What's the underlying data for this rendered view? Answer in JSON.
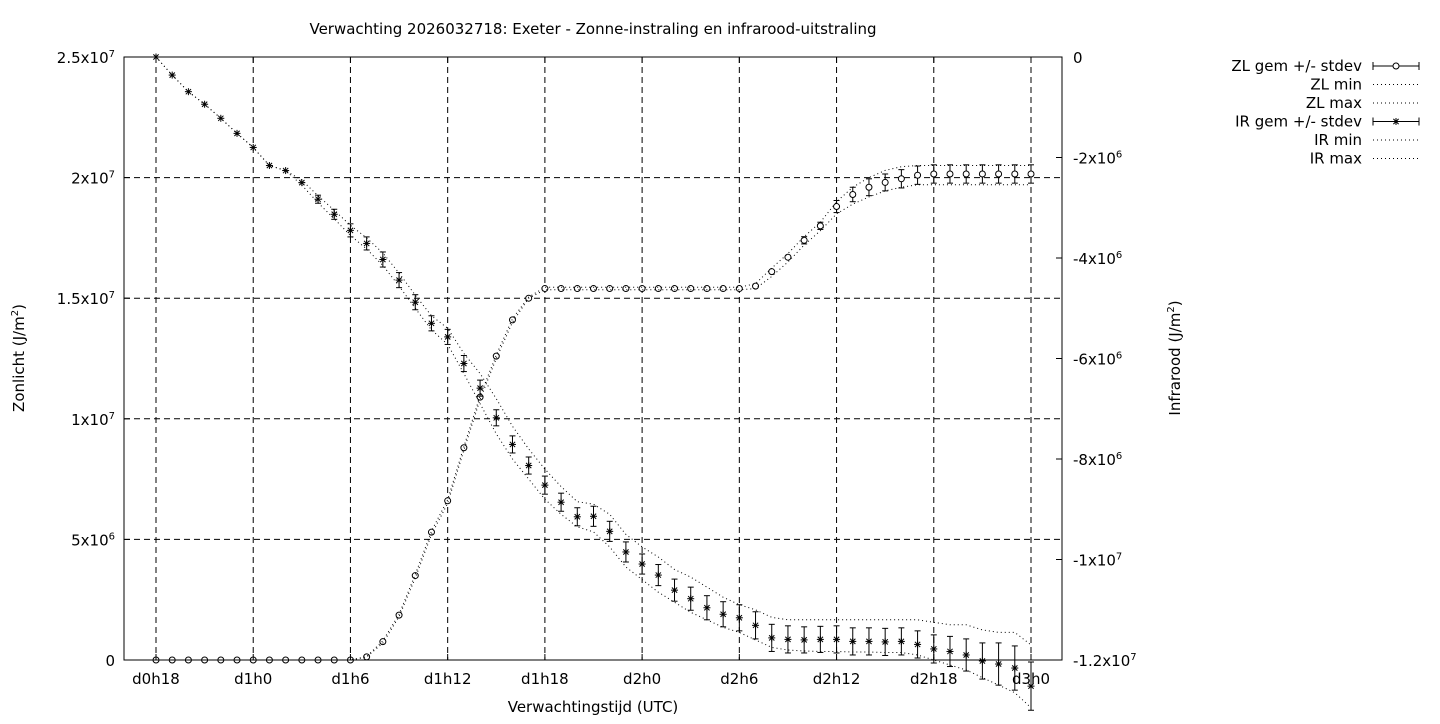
{
  "chart_data": {
    "type": "scatter",
    "title": "Verwachting 2026032718: Exeter - Zonne-instraling en infrarood-uitstraling",
    "xlabel": "Verwachtingstijd (UTC)",
    "ylabel": "Zonlicht (J/m",
    "ylabel_sup": "2",
    "ylabel_close": ")",
    "y2label": "Infrarood (J/m",
    "y2label_sup": "2",
    "y2label_close": ")",
    "x_unit": "hours",
    "xlim": [
      18,
      72
    ],
    "ylim": [
      0,
      25000000
    ],
    "y2lim": [
      -12000000,
      0
    ],
    "grid": true,
    "legend_position": "outside-right",
    "x_ticks": [
      {
        "value": 18,
        "label": "d0h18"
      },
      {
        "value": 24,
        "label": "d1h0"
      },
      {
        "value": 30,
        "label": "d1h6"
      },
      {
        "value": 36,
        "label": "d1h12"
      },
      {
        "value": 42,
        "label": "d1h18"
      },
      {
        "value": 48,
        "label": "d2h0"
      },
      {
        "value": 54,
        "label": "d2h6"
      },
      {
        "value": 60,
        "label": "d2h12"
      },
      {
        "value": 66,
        "label": "d2h18"
      },
      {
        "value": 72,
        "label": "d3h0"
      }
    ],
    "y_ticks": [
      {
        "value": 0,
        "base": "0",
        "exp": ""
      },
      {
        "value": 5000000,
        "base": "5x10",
        "exp": "6"
      },
      {
        "value": 10000000,
        "base": "1x10",
        "exp": "7"
      },
      {
        "value": 15000000,
        "base": "1.5x10",
        "exp": "7"
      },
      {
        "value": 20000000,
        "base": "2x10",
        "exp": "7"
      },
      {
        "value": 25000000,
        "base": "2.5x10",
        "exp": "7"
      }
    ],
    "y2_ticks": [
      {
        "value": 0,
        "base": "0",
        "exp": ""
      },
      {
        "value": -2000000,
        "base": "-2x10",
        "exp": "6"
      },
      {
        "value": -4000000,
        "base": "-4x10",
        "exp": "6"
      },
      {
        "value": -6000000,
        "base": "-6x10",
        "exp": "6"
      },
      {
        "value": -8000000,
        "base": "-8x10",
        "exp": "6"
      },
      {
        "value": -10000000,
        "base": "-1x10",
        "exp": "7"
      },
      {
        "value": -12000000,
        "base": "-1.2x10",
        "exp": "7"
      }
    ],
    "x": [
      18,
      19,
      20,
      21,
      22,
      23,
      24,
      25,
      26,
      27,
      28,
      29,
      30,
      31,
      32,
      33,
      34,
      35,
      36,
      37,
      38,
      39,
      40,
      41,
      42,
      43,
      44,
      45,
      46,
      47,
      48,
      49,
      50,
      51,
      52,
      53,
      54,
      55,
      56,
      57,
      58,
      59,
      60,
      61,
      62,
      63,
      64,
      65,
      66,
      67,
      68,
      69,
      70,
      71,
      72
    ],
    "series": [
      {
        "name": "ZL gem +/- stdev",
        "axis": "y",
        "marker": "circle",
        "mean": [
          0,
          0,
          0,
          0,
          0,
          0,
          0,
          0,
          0,
          0,
          0,
          0,
          0,
          130000,
          760000,
          1860000,
          3500000,
          5300000,
          6600000,
          8800000,
          10900000,
          12600000,
          14100000,
          15000000,
          15400000,
          15400000,
          15400000,
          15400000,
          15400000,
          15400000,
          15400000,
          15400000,
          15400000,
          15400000,
          15400000,
          15400000,
          15400000,
          15500000,
          16100000,
          16700000,
          17400000,
          18000000,
          18800000,
          19300000,
          19600000,
          19800000,
          19950000,
          20100000,
          20150000,
          20150000,
          20150000,
          20150000,
          20150000,
          20150000,
          20150000
        ],
        "stdev": [
          0,
          0,
          0,
          0,
          0,
          0,
          0,
          0,
          0,
          0,
          0,
          0,
          0,
          0,
          0,
          0,
          0,
          0,
          0,
          0,
          0,
          0,
          0,
          0,
          0,
          0,
          0,
          0,
          0,
          0,
          0,
          0,
          0,
          0,
          0,
          0,
          0,
          0,
          0,
          0,
          150000,
          150000,
          250000,
          300000,
          350000,
          350000,
          380000,
          380000,
          380000,
          380000,
          380000,
          380000,
          380000,
          380000,
          380000
        ]
      },
      {
        "name": "ZL min",
        "axis": "y",
        "style": "dotted",
        "values": [
          0,
          0,
          0,
          0,
          0,
          0,
          0,
          0,
          0,
          0,
          0,
          0,
          0,
          120000,
          700000,
          1800000,
          3400000,
          5200000,
          6500000,
          8700000,
          10800000,
          12500000,
          14000000,
          15000000,
          15350000,
          15350000,
          15350000,
          15350000,
          15350000,
          15350000,
          15350000,
          15350000,
          15350000,
          15350000,
          15350000,
          15350000,
          15350000,
          15400000,
          15900000,
          16500000,
          17200000,
          17800000,
          18500000,
          18900000,
          19200000,
          19450000,
          19600000,
          19700000,
          19700000,
          19700000,
          19700000,
          19700000,
          19700000,
          19700000,
          19700000
        ]
      },
      {
        "name": "ZL max",
        "axis": "y",
        "style": "dotted",
        "values": [
          0,
          0,
          0,
          0,
          0,
          0,
          0,
          0,
          0,
          0,
          0,
          0,
          0,
          140000,
          800000,
          1900000,
          3550000,
          5350000,
          6650000,
          8850000,
          10950000,
          12650000,
          14150000,
          15050000,
          15450000,
          15450000,
          15450000,
          15450000,
          15450000,
          15450000,
          15450000,
          15450000,
          15450000,
          15450000,
          15450000,
          15450000,
          15450000,
          15600000,
          16250000,
          16850000,
          17550000,
          18150000,
          19000000,
          19600000,
          20000000,
          20300000,
          20450000,
          20500000,
          20500000,
          20500000,
          20500000,
          20500000,
          20500000,
          20500000,
          20500000
        ]
      },
      {
        "name": "IR gem +/- stdev",
        "axis": "y2",
        "marker": "star",
        "mean": [
          0,
          -360000,
          -690000,
          -940000,
          -1220000,
          -1520000,
          -1800000,
          -2160000,
          -2260000,
          -2500000,
          -2830000,
          -3130000,
          -3450000,
          -3710000,
          -4030000,
          -4440000,
          -4880000,
          -5300000,
          -5570000,
          -6100000,
          -6590000,
          -7180000,
          -7710000,
          -8130000,
          -8520000,
          -8860000,
          -9150000,
          -9140000,
          -9440000,
          -9850000,
          -10090000,
          -10310000,
          -10610000,
          -10780000,
          -10960000,
          -11090000,
          -11160000,
          -11310000,
          -11560000,
          -11590000,
          -11600000,
          -11590000,
          -11590000,
          -11630000,
          -11630000,
          -11640000,
          -11630000,
          -11690000,
          -11780000,
          -11830000,
          -11900000,
          -12020000,
          -12080000,
          -12160000,
          -12520000
        ],
        "stdev": [
          0,
          0,
          0,
          0,
          0,
          0,
          0,
          0,
          0,
          0,
          80000,
          100000,
          130000,
          130000,
          150000,
          150000,
          150000,
          150000,
          150000,
          160000,
          160000,
          160000,
          170000,
          170000,
          180000,
          180000,
          180000,
          200000,
          200000,
          200000,
          200000,
          210000,
          220000,
          230000,
          240000,
          250000,
          260000,
          270000,
          270000,
          270000,
          260000,
          260000,
          270000,
          270000,
          270000,
          270000,
          270000,
          270000,
          280000,
          300000,
          320000,
          360000,
          420000,
          440000,
          480000
        ]
      },
      {
        "name": "IR min",
        "axis": "y2",
        "style": "dotted",
        "values": [
          0,
          -360000,
          -690000,
          -940000,
          -1220000,
          -1520000,
          -1800000,
          -2160000,
          -2260000,
          -2550000,
          -2900000,
          -3220000,
          -3550000,
          -3820000,
          -4150000,
          -4560000,
          -5000000,
          -5430000,
          -5720000,
          -6300000,
          -6900000,
          -7500000,
          -8000000,
          -8400000,
          -8800000,
          -9100000,
          -9350000,
          -9450000,
          -9750000,
          -10150000,
          -10400000,
          -10650000,
          -10850000,
          -11050000,
          -11200000,
          -11350000,
          -11450000,
          -11600000,
          -11750000,
          -11800000,
          -11820000,
          -11830000,
          -11830000,
          -11840000,
          -11840000,
          -11850000,
          -11850000,
          -11900000,
          -12000000,
          -12100000,
          -12200000,
          -12350000,
          -12500000,
          -12650000,
          -12950000
        ]
      },
      {
        "name": "IR max",
        "axis": "y2",
        "style": "dotted",
        "values": [
          0,
          -360000,
          -690000,
          -940000,
          -1220000,
          -1520000,
          -1800000,
          -2160000,
          -2260000,
          -2450000,
          -2760000,
          -3050000,
          -3350000,
          -3600000,
          -3900000,
          -4300000,
          -4740000,
          -5150000,
          -5400000,
          -5900000,
          -6300000,
          -6800000,
          -7350000,
          -7800000,
          -8200000,
          -8550000,
          -8850000,
          -8900000,
          -9100000,
          -9500000,
          -9750000,
          -9950000,
          -10200000,
          -10350000,
          -10550000,
          -10750000,
          -10900000,
          -11000000,
          -11150000,
          -11200000,
          -11200000,
          -11200000,
          -11200000,
          -11200000,
          -11200000,
          -11200000,
          -11200000,
          -11200000,
          -11250000,
          -11300000,
          -11300000,
          -11400000,
          -11450000,
          -11450000,
          -11700000
        ]
      }
    ]
  }
}
